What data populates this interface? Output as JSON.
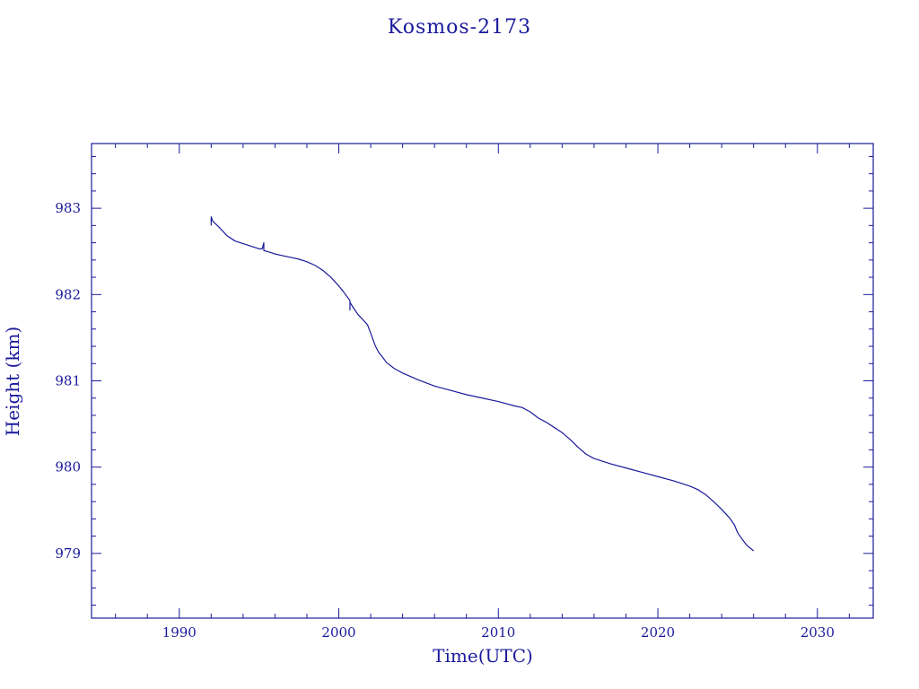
{
  "chart_data": {
    "type": "line",
    "title": "Kosmos-2173",
    "xlabel": "Time(UTC)",
    "ylabel": "Height (km)",
    "xlim": [
      1984.5,
      2033.5
    ],
    "ylim": [
      978.25,
      983.75
    ],
    "xticks": [
      1990,
      2000,
      2010,
      2020,
      2030
    ],
    "yticks": [
      979,
      980,
      981,
      982,
      983
    ],
    "grid": false,
    "color": "#1a1a9c",
    "series": [
      {
        "x": [
          1992.0,
          1992.0,
          1992.1,
          1992.5,
          1993.0,
          1993.5,
          1994.0,
          1994.5,
          1995.0,
          1995.2,
          1995.3,
          1995.3,
          1995.3,
          1995.5,
          1996.0,
          1996.5,
          1997.0,
          1997.5,
          1998.0,
          1998.5,
          1999.0,
          1999.5,
          2000.0,
          2000.3,
          2000.5,
          2000.7,
          2000.7,
          2000.7,
          2000.9,
          2001.2,
          2001.5,
          2001.8,
          2002.0,
          2002.3,
          2002.5,
          2002.8,
          2003.0,
          2003.5,
          2004.0,
          2005.0,
          2006.0,
          2007.0,
          2008.0,
          2009.0,
          2010.0,
          2011.0,
          2011.5,
          2012.0,
          2012.5,
          2013.0,
          2013.5,
          2014.0,
          2014.5,
          2015.0,
          2015.5,
          2016.0,
          2017.0,
          2018.0,
          2019.0,
          2020.0,
          2021.0,
          2022.0,
          2022.5,
          2023.0,
          2023.5,
          2024.0,
          2024.5,
          2024.8,
          2025.0,
          2025.3,
          2025.6,
          2026.0
        ],
        "y": [
          982.8,
          982.9,
          982.85,
          982.78,
          982.68,
          982.62,
          982.59,
          982.56,
          982.53,
          982.53,
          982.6,
          982.51,
          982.51,
          982.5,
          982.47,
          982.45,
          982.43,
          982.41,
          982.38,
          982.34,
          982.28,
          982.2,
          982.1,
          982.03,
          981.98,
          981.93,
          981.82,
          981.91,
          981.85,
          981.77,
          981.71,
          981.65,
          981.55,
          981.4,
          981.33,
          981.26,
          981.21,
          981.14,
          981.09,
          981.01,
          980.94,
          980.89,
          980.84,
          980.8,
          980.76,
          980.71,
          980.69,
          980.64,
          980.57,
          980.52,
          980.46,
          980.4,
          980.32,
          980.23,
          980.15,
          980.1,
          980.04,
          979.99,
          979.94,
          979.89,
          979.84,
          979.78,
          979.74,
          979.68,
          979.6,
          979.51,
          979.41,
          979.33,
          979.24,
          979.16,
          979.09,
          979.03
        ]
      }
    ]
  }
}
